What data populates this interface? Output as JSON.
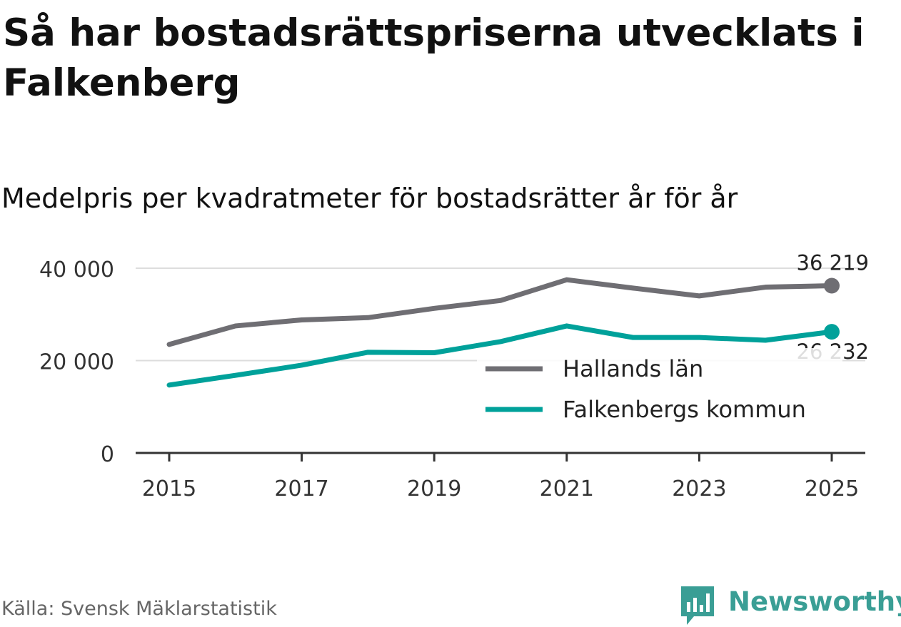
{
  "title": "Så har bostadsrättspriserna utvecklats i Falkenberg",
  "subtitle": "Medelpris per kvadratmeter för bostadsrätter år för år",
  "source": "Källa: Svensk Mäklarstatistik",
  "logo": {
    "text": "Newsworthy",
    "icon": "bar-chart-bubble-icon",
    "color": "#3a9e95"
  },
  "chart_data": {
    "type": "line",
    "x": [
      2015,
      2016,
      2017,
      2018,
      2019,
      2020,
      2021,
      2022,
      2023,
      2024,
      2025
    ],
    "xticks": [
      "2015",
      "2017",
      "2019",
      "2021",
      "2023",
      "2025"
    ],
    "yticks": [
      "0",
      "20 000",
      "40 000"
    ],
    "ylim": [
      0,
      40000
    ],
    "grid": true,
    "legend": "inside-right",
    "series": [
      {
        "name": "Hallands län",
        "color": "#6f6e73",
        "values": [
          23500,
          27500,
          28800,
          29300,
          31300,
          33000,
          37500,
          35700,
          34000,
          35900,
          36219
        ],
        "end_label": "36 219"
      },
      {
        "name": "Falkenbergs kommun",
        "color": "#00a19a",
        "values": [
          14700,
          16800,
          19000,
          21800,
          21700,
          24100,
          27500,
          25000,
          25000,
          24400,
          26232
        ],
        "end_label": "26 232"
      }
    ]
  }
}
